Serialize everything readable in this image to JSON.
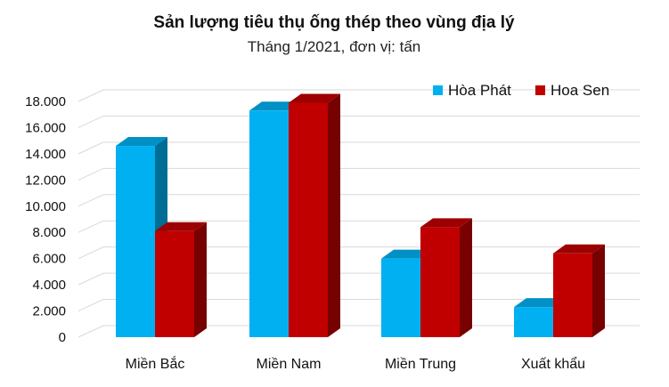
{
  "chart_data": {
    "type": "bar",
    "title": "Sản lượng tiêu thụ ống thép theo vùng địa lý",
    "subtitle": "Tháng 1/2021, đơn vị: tấn",
    "categories": [
      "Miền Bắc",
      "Miền Nam",
      "Miền Trung",
      "Xuất khẩu"
    ],
    "series": [
      {
        "name": "Hòa Phát",
        "values": [
          14600,
          17300,
          6000,
          2300
        ],
        "color": "#00b0f0"
      },
      {
        "name": "Hoa Sen",
        "values": [
          8100,
          17900,
          8400,
          6400
        ],
        "color": "#c00000"
      }
    ],
    "y_ticks": [
      "0",
      "2.000",
      "4.000",
      "6.000",
      "8.000",
      "10.000",
      "12.000",
      "14.000",
      "16.000",
      "18.000"
    ],
    "ylim": [
      0,
      18000
    ],
    "grid": true,
    "style_3d": true,
    "legend_position": "top-right"
  }
}
